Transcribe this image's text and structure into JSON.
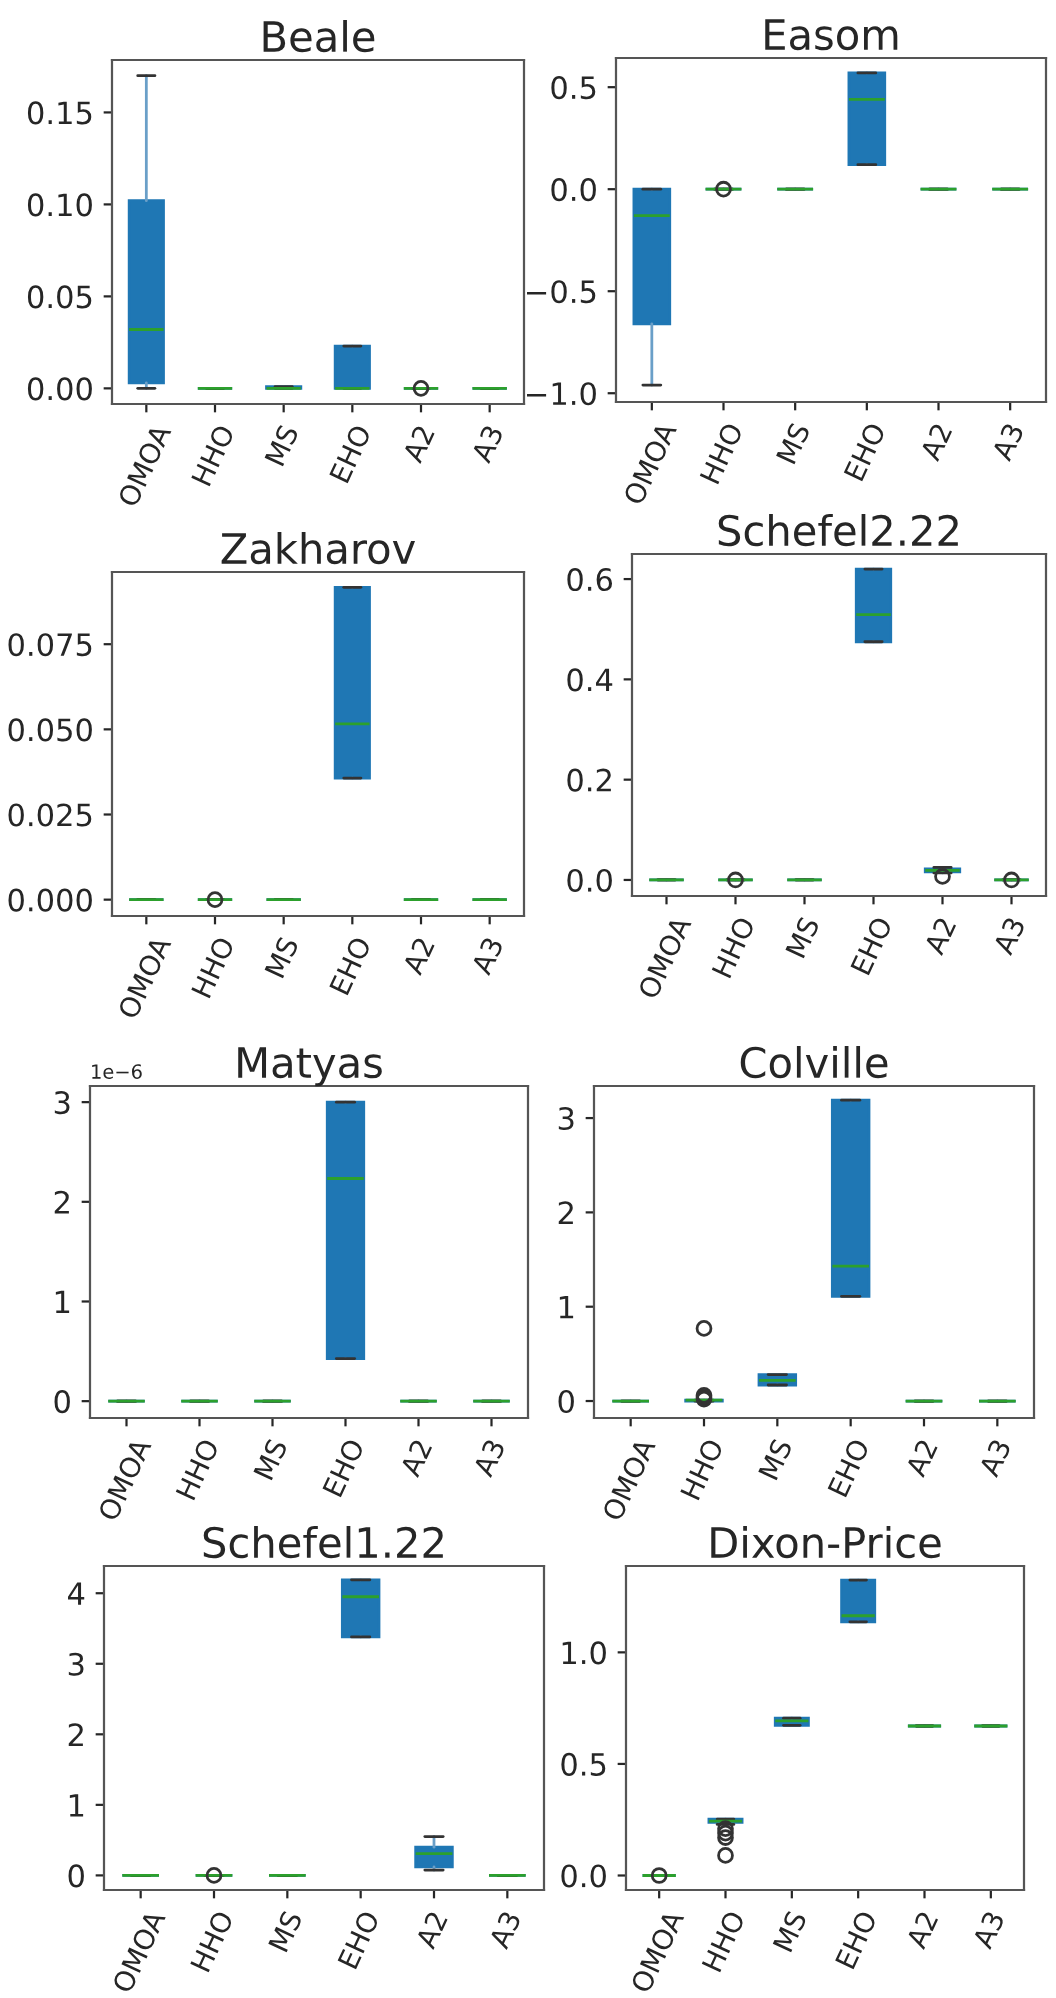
{
  "chart_data": [
    {
      "type": "box",
      "title": "Beale",
      "categories": [
        "OMOA",
        "HHO",
        "MS",
        "EHO",
        "A2",
        "A3"
      ],
      "ylim": [
        -0.0085,
        0.1785
      ],
      "yticks": [
        {
          "value": 0,
          "label": "0.00"
        },
        {
          "value": 0.05,
          "label": "0.05"
        },
        {
          "value": 0.1,
          "label": "0.10"
        },
        {
          "value": 0.15,
          "label": "0.15"
        }
      ],
      "grid": false,
      "series": [
        {
          "color": "#1f77b4",
          "boxes": [
            {
              "low": 0,
              "q1": 0.003,
              "median": 0.032,
              "q3": 0.102,
              "high": 0.17
            },
            {
              "low": 0,
              "q1": 0,
              "median": 0,
              "q3": 0,
              "high": 0
            },
            {
              "low": 0,
              "q1": 0,
              "median": 0,
              "q3": 0.001,
              "high": 0.001
            },
            {
              "low": 0,
              "q1": 0,
              "median": 0,
              "q3": 0.023,
              "high": 0.023
            },
            {
              "low": 0,
              "q1": 0,
              "median": 0,
              "q3": 0,
              "high": 0,
              "outliers": [
                0
              ]
            },
            {
              "low": 0,
              "q1": 0,
              "median": 0,
              "q3": 0,
              "high": 0
            }
          ]
        }
      ]
    },
    {
      "type": "box",
      "title": "Easom",
      "categories": [
        "OMOA",
        "HHO",
        "MS",
        "EHO",
        "A2",
        "A3"
      ],
      "ylim": [
        -1.043,
        0.643
      ],
      "yticks": [
        {
          "value": -1.0,
          "label": "−1.0"
        },
        {
          "value": -0.5,
          "label": "−0.5"
        },
        {
          "value": 0,
          "label": "0.0"
        },
        {
          "value": 0.5,
          "label": "0.5"
        }
      ],
      "grid": false,
      "series": [
        {
          "color": "#1f77b4",
          "boxes": [
            {
              "low": -0.96,
              "q1": -0.66,
              "median": -0.13,
              "q3": 0,
              "high": 0
            },
            {
              "low": 0,
              "q1": 0,
              "median": 0,
              "q3": 0,
              "high": 0,
              "outliers": [
                0
              ]
            },
            {
              "low": 0,
              "q1": 0,
              "median": 0,
              "q3": 0,
              "high": 0
            },
            {
              "low": 0.12,
              "q1": 0.12,
              "median": 0.44,
              "q3": 0.57,
              "high": 0.57
            },
            {
              "low": 0,
              "q1": 0,
              "median": 0,
              "q3": 0,
              "high": 0
            },
            {
              "low": 0,
              "q1": 0,
              "median": 0,
              "q3": 0,
              "high": 0
            }
          ]
        }
      ]
    },
    {
      "type": "box",
      "title": "Zakharov",
      "categories": [
        "OMOA",
        "HHO",
        "MS",
        "EHO",
        "A2",
        "A3"
      ],
      "ylim": [
        -0.0048,
        0.0962
      ],
      "yticks": [
        {
          "value": 0,
          "label": "0.000"
        },
        {
          "value": 0.025,
          "label": "0.025"
        },
        {
          "value": 0.05,
          "label": "0.050"
        },
        {
          "value": 0.075,
          "label": "0.075"
        }
      ],
      "grid": false,
      "series": [
        {
          "color": "#1f77b4",
          "boxes": [
            {
              "low": 0,
              "q1": 0,
              "median": 0,
              "q3": 0,
              "high": 0
            },
            {
              "low": 0,
              "q1": 0,
              "median": 0,
              "q3": 0,
              "high": 0,
              "outliers": [
                0
              ]
            },
            {
              "low": 0,
              "q1": 0,
              "median": 0,
              "q3": 0,
              "high": 0
            },
            {
              "low": 0.0357,
              "q1": 0.0357,
              "median": 0.0516,
              "q3": 0.0917,
              "high": 0.0917
            },
            {
              "low": 0,
              "q1": 0,
              "median": 0,
              "q3": 0,
              "high": 0
            },
            {
              "low": 0,
              "q1": 0,
              "median": 0,
              "q3": 0,
              "high": 0
            }
          ]
        }
      ]
    },
    {
      "type": "box",
      "title": "Schefel2.22",
      "categories": [
        "OMOA",
        "HHO",
        "MS",
        "EHO",
        "A2",
        "A3"
      ],
      "ylim": [
        -0.032,
        0.65
      ],
      "yticks": [
        {
          "value": 0,
          "label": "0.0"
        },
        {
          "value": 0.2,
          "label": "0.2"
        },
        {
          "value": 0.4,
          "label": "0.4"
        },
        {
          "value": 0.6,
          "label": "0.6"
        }
      ],
      "grid": false,
      "series": [
        {
          "color": "#1f77b4",
          "boxes": [
            {
              "low": 0,
              "q1": 0,
              "median": 0,
              "q3": 0,
              "high": 0
            },
            {
              "low": 0,
              "q1": 0,
              "median": 0,
              "q3": 0,
              "high": 0,
              "outliers": [
                0
              ]
            },
            {
              "low": 0,
              "q1": 0,
              "median": 0,
              "q3": 0,
              "high": 0
            },
            {
              "low": 0.475,
              "q1": 0.475,
              "median": 0.529,
              "q3": 0.62,
              "high": 0.62
            },
            {
              "low": 0.014,
              "q1": 0.016,
              "median": 0.019,
              "q3": 0.022,
              "high": 0.025,
              "outliers": [
                0.007
              ]
            },
            {
              "low": 0,
              "q1": 0,
              "median": 0,
              "q3": 0,
              "high": 0,
              "outliers": [
                0
              ]
            }
          ]
        }
      ]
    },
    {
      "type": "box",
      "title": "Matyas",
      "categories": [
        "OMOA",
        "HHO",
        "MS",
        "EHO",
        "A2",
        "A3"
      ],
      "ylim": [
        -0.169,
        3.162
      ],
      "yticks": [
        0,
        1,
        2,
        3
      ],
      "grid": false,
      "annotations": [
        "1e−6"
      ],
      "series": [
        {
          "color": "#1f77b4",
          "boxes": [
            {
              "low": 0,
              "q1": 0,
              "median": 0,
              "q3": 0,
              "high": 0
            },
            {
              "low": 0,
              "q1": 0,
              "median": 0,
              "q3": 0,
              "high": 0
            },
            {
              "low": 0,
              "q1": 0,
              "median": 0,
              "q3": 0,
              "high": 0
            },
            {
              "low": 0.427,
              "q1": 0.427,
              "median": 2.234,
              "q3": 3.0,
              "high": 3.0
            },
            {
              "low": 0,
              "q1": 0,
              "median": 0,
              "q3": 0,
              "high": 0
            },
            {
              "low": 0,
              "q1": 0,
              "median": 0,
              "q3": 0,
              "high": 0
            }
          ]
        }
      ]
    },
    {
      "type": "box",
      "title": "Colville",
      "categories": [
        "OMOA",
        "HHO",
        "MS",
        "EHO",
        "A2",
        "A3"
      ],
      "ylim": [
        -0.18,
        3.34
      ],
      "yticks": [
        0,
        1,
        2,
        3
      ],
      "grid": false,
      "series": [
        {
          "color": "#1f77b4",
          "boxes": [
            {
              "low": 0,
              "q1": 0,
              "median": 0,
              "q3": 0,
              "high": 0
            },
            {
              "low": 0,
              "q1": 0,
              "median": 0.01,
              "q3": 0.01,
              "high": 0.01,
              "outliers": [
                0.77,
                0.06,
                0.04,
                0.02
              ]
            },
            {
              "low": 0.17,
              "q1": 0.17,
              "median": 0.22,
              "q3": 0.28,
              "high": 0.28
            },
            {
              "low": 1.11,
              "q1": 1.11,
              "median": 1.43,
              "q3": 3.19,
              "high": 3.19
            },
            {
              "low": 0,
              "q1": 0,
              "median": 0,
              "q3": 0,
              "high": 0
            },
            {
              "low": 0,
              "q1": 0,
              "median": 0,
              "q3": 0,
              "high": 0
            }
          ]
        }
      ]
    },
    {
      "type": "box",
      "title": "Schefel1.22",
      "categories": [
        "OMOA",
        "HHO",
        "MS",
        "EHO",
        "A2",
        "A3"
      ],
      "ylim": [
        -0.207,
        4.386
      ],
      "yticks": [
        0,
        1,
        2,
        3,
        4
      ],
      "grid": false,
      "series": [
        {
          "color": "#1f77b4",
          "boxes": [
            {
              "low": 0,
              "q1": 0,
              "median": 0,
              "q3": 0,
              "high": 0
            },
            {
              "low": 0,
              "q1": 0,
              "median": 0,
              "q3": 0,
              "high": 0,
              "outliers": [
                0
              ]
            },
            {
              "low": 0,
              "q1": 0,
              "median": 0,
              "q3": 0,
              "high": 0
            },
            {
              "low": 3.38,
              "q1": 3.38,
              "median": 3.95,
              "q3": 4.19,
              "high": 4.19
            },
            {
              "low": 0.075,
              "q1": 0.12,
              "median": 0.31,
              "q3": 0.4,
              "high": 0.55
            },
            {
              "low": 0,
              "q1": 0,
              "median": 0,
              "q3": 0,
              "high": 0
            }
          ]
        }
      ]
    },
    {
      "type": "box",
      "title": "Dixon-Price",
      "categories": [
        "OMOA",
        "HHO",
        "MS",
        "EHO",
        "A2",
        "A3"
      ],
      "ylim": [
        -0.065,
        1.387
      ],
      "yticks": [
        {
          "value": 0,
          "label": "0.0"
        },
        {
          "value": 0.5,
          "label": "0.5"
        },
        {
          "value": 1.0,
          "label": "1.0"
        }
      ],
      "grid": false,
      "series": [
        {
          "color": "#1f77b4",
          "boxes": [
            {
              "low": 0,
              "q1": 0,
              "median": 0,
              "q3": 0,
              "high": 0,
              "outliers": [
                0
              ]
            },
            {
              "low": 0.229,
              "q1": 0.238,
              "median": 0.244,
              "q3": 0.253,
              "high": 0.253,
              "outliers": [
                0.21,
                0.19,
                0.17,
                0.09
              ]
            },
            {
              "low": 0.673,
              "q1": 0.673,
              "median": 0.693,
              "q3": 0.705,
              "high": 0.705
            },
            {
              "low": 1.137,
              "q1": 1.137,
              "median": 1.164,
              "q3": 1.324,
              "high": 1.324
            },
            {
              "low": 0.67,
              "q1": 0.67,
              "median": 0.67,
              "q3": 0.67,
              "high": 0.67
            },
            {
              "low": 0.67,
              "q1": 0.67,
              "median": 0.67,
              "q3": 0.67,
              "high": 0.67
            }
          ]
        }
      ]
    }
  ]
}
